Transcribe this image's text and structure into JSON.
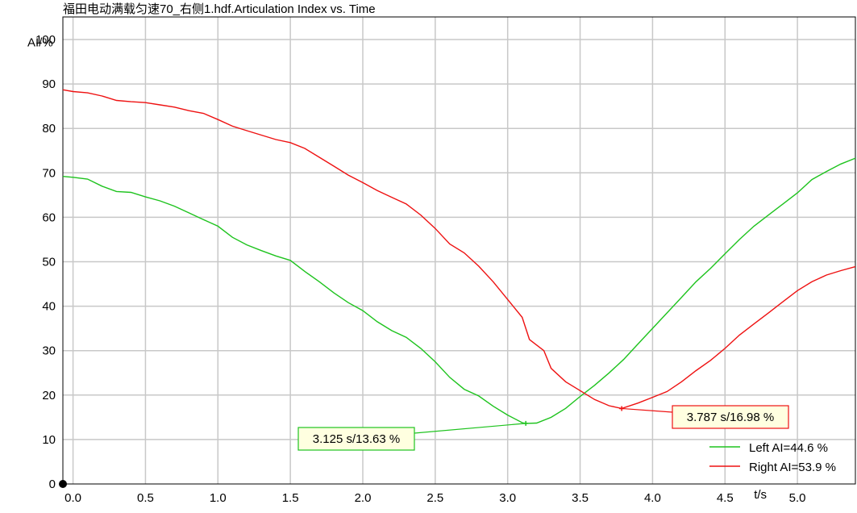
{
  "chart_data": {
    "type": "line",
    "title": "福田电动满载匀速70_右侧1.hdf.Articulation Index vs. Time",
    "xlabel": "t/s",
    "ylabel": "AI/%",
    "xlim": [
      -0.07,
      5.4
    ],
    "ylim": [
      0,
      100
    ],
    "x_ticks": [
      "0.0",
      "0.5",
      "1.0",
      "1.5",
      "2.0",
      "2.5",
      "3.0",
      "3.5",
      "4.0",
      "4.5",
      "5.0"
    ],
    "y_ticks": [
      "0",
      "10",
      "20",
      "30",
      "40",
      "50",
      "60",
      "70",
      "80",
      "90",
      "100"
    ],
    "grid": true,
    "legend_position": "bottom-right",
    "series": [
      {
        "name": "Left AI=44.6 %",
        "color": "#1ec31e",
        "points": [
          [
            -0.07,
            69.2
          ],
          [
            0.0,
            69.0
          ],
          [
            0.1,
            68.6
          ],
          [
            0.2,
            67.0
          ],
          [
            0.3,
            65.8
          ],
          [
            0.4,
            65.6
          ],
          [
            0.5,
            64.6
          ],
          [
            0.6,
            63.7
          ],
          [
            0.7,
            62.5
          ],
          [
            0.8,
            61.0
          ],
          [
            0.9,
            59.5
          ],
          [
            1.0,
            58.0
          ],
          [
            1.1,
            55.5
          ],
          [
            1.2,
            53.8
          ],
          [
            1.3,
            52.5
          ],
          [
            1.4,
            51.3
          ],
          [
            1.5,
            50.3
          ],
          [
            1.6,
            47.8
          ],
          [
            1.7,
            45.5
          ],
          [
            1.8,
            43.0
          ],
          [
            1.9,
            40.8
          ],
          [
            2.0,
            39.0
          ],
          [
            2.1,
            36.5
          ],
          [
            2.2,
            34.5
          ],
          [
            2.3,
            33.0
          ],
          [
            2.4,
            30.5
          ],
          [
            2.5,
            27.5
          ],
          [
            2.6,
            24.0
          ],
          [
            2.7,
            21.3
          ],
          [
            2.8,
            19.8
          ],
          [
            2.9,
            17.5
          ],
          [
            3.0,
            15.5
          ],
          [
            3.1,
            13.8
          ],
          [
            3.125,
            13.63
          ],
          [
            3.2,
            13.7
          ],
          [
            3.3,
            15.0
          ],
          [
            3.4,
            17.0
          ],
          [
            3.5,
            19.7
          ],
          [
            3.6,
            22.2
          ],
          [
            3.7,
            25.0
          ],
          [
            3.8,
            28.0
          ],
          [
            3.9,
            31.5
          ],
          [
            4.0,
            35.0
          ],
          [
            4.1,
            38.5
          ],
          [
            4.2,
            42.0
          ],
          [
            4.3,
            45.5
          ],
          [
            4.4,
            48.5
          ],
          [
            4.5,
            51.8
          ],
          [
            4.6,
            55.0
          ],
          [
            4.7,
            58.0
          ],
          [
            4.8,
            60.5
          ],
          [
            4.9,
            63.0
          ],
          [
            5.0,
            65.5
          ],
          [
            5.1,
            68.5
          ],
          [
            5.2,
            70.3
          ],
          [
            5.3,
            72.0
          ],
          [
            5.4,
            73.3
          ]
        ]
      },
      {
        "name": "Right AI=53.9 %",
        "color": "#ee1111",
        "points": [
          [
            -0.07,
            88.7
          ],
          [
            0.0,
            88.3
          ],
          [
            0.1,
            88.0
          ],
          [
            0.2,
            87.3
          ],
          [
            0.3,
            86.3
          ],
          [
            0.4,
            86.0
          ],
          [
            0.5,
            85.8
          ],
          [
            0.6,
            85.3
          ],
          [
            0.7,
            84.8
          ],
          [
            0.8,
            84.0
          ],
          [
            0.9,
            83.4
          ],
          [
            1.0,
            82.0
          ],
          [
            1.1,
            80.5
          ],
          [
            1.2,
            79.5
          ],
          [
            1.3,
            78.5
          ],
          [
            1.4,
            77.5
          ],
          [
            1.5,
            76.8
          ],
          [
            1.6,
            75.5
          ],
          [
            1.7,
            73.5
          ],
          [
            1.8,
            71.5
          ],
          [
            1.9,
            69.5
          ],
          [
            2.0,
            67.8
          ],
          [
            2.1,
            66.0
          ],
          [
            2.2,
            64.5
          ],
          [
            2.3,
            63.0
          ],
          [
            2.4,
            60.5
          ],
          [
            2.5,
            57.5
          ],
          [
            2.6,
            54.0
          ],
          [
            2.7,
            52.0
          ],
          [
            2.8,
            49.0
          ],
          [
            2.9,
            45.5
          ],
          [
            3.0,
            41.5
          ],
          [
            3.1,
            37.5
          ],
          [
            3.15,
            32.5
          ],
          [
            3.25,
            30.0
          ],
          [
            3.3,
            26.0
          ],
          [
            3.4,
            23.0
          ],
          [
            3.5,
            21.0
          ],
          [
            3.6,
            19.0
          ],
          [
            3.7,
            17.6
          ],
          [
            3.787,
            16.98
          ],
          [
            3.9,
            18.2
          ],
          [
            4.0,
            19.5
          ],
          [
            4.1,
            20.8
          ],
          [
            4.2,
            23.0
          ],
          [
            4.3,
            25.5
          ],
          [
            4.4,
            27.8
          ],
          [
            4.5,
            30.5
          ],
          [
            4.6,
            33.5
          ],
          [
            4.7,
            36.0
          ],
          [
            4.8,
            38.5
          ],
          [
            4.9,
            41.0
          ],
          [
            5.0,
            43.5
          ],
          [
            5.1,
            45.5
          ],
          [
            5.2,
            47.0
          ],
          [
            5.3,
            48.0
          ],
          [
            5.4,
            48.9
          ]
        ]
      }
    ],
    "annotations": [
      {
        "text": "3.125 s/13.63 %",
        "x": 3.125,
        "y": 13.63,
        "color": "#1ec31e",
        "bg": "#ffffe0"
      },
      {
        "text": "3.787 s/16.98 %",
        "x": 3.787,
        "y": 16.98,
        "color": "#ee1111",
        "bg": "#ffffe0"
      }
    ]
  }
}
